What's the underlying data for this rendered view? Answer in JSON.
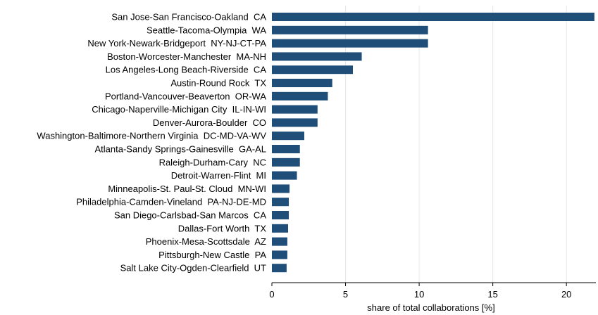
{
  "chart_data": {
    "type": "bar",
    "orientation": "horizontal",
    "categories": [
      "San Jose-San Francisco-Oakland  CA",
      "Seattle-Tacoma-Olympia  WA",
      "New York-Newark-Bridgeport  NY-NJ-CT-PA",
      "Boston-Worcester-Manchester  MA-NH",
      "Los Angeles-Long Beach-Riverside  CA",
      "Austin-Round Rock  TX",
      "Portland-Vancouver-Beaverton  OR-WA",
      "Chicago-Naperville-Michigan City  IL-IN-WI",
      "Denver-Aurora-Boulder  CO",
      "Washington-Baltimore-Northern Virginia  DC-MD-VA-WV",
      "Atlanta-Sandy Springs-Gainesville  GA-AL",
      "Raleigh-Durham-Cary  NC",
      "Detroit-Warren-Flint  MI",
      "Minneapolis-St. Paul-St. Cloud  MN-WI",
      "Philadelphia-Camden-Vineland  PA-NJ-DE-MD",
      "San Diego-Carlsbad-San Marcos  CA",
      "Dallas-Fort Worth  TX",
      "Phoenix-Mesa-Scottsdale  AZ",
      "Pittsburgh-New Castle  PA",
      "Salt Lake City-Ogden-Clearfield  UT"
    ],
    "values": [
      21.9,
      10.6,
      10.6,
      6.1,
      5.5,
      4.1,
      3.8,
      3.1,
      3.1,
      2.2,
      1.9,
      1.9,
      1.7,
      1.2,
      1.15,
      1.15,
      1.1,
      1.05,
      1.05,
      1.0
    ],
    "xlabel": "share of total collaborations [%]",
    "ylabel": "",
    "title": "",
    "xlim": [
      0,
      22
    ],
    "xticks": [
      0,
      5,
      10,
      15,
      20
    ],
    "grid": true,
    "bar_color": "#1f4e79",
    "grid_color": "#e3e8ef"
  }
}
